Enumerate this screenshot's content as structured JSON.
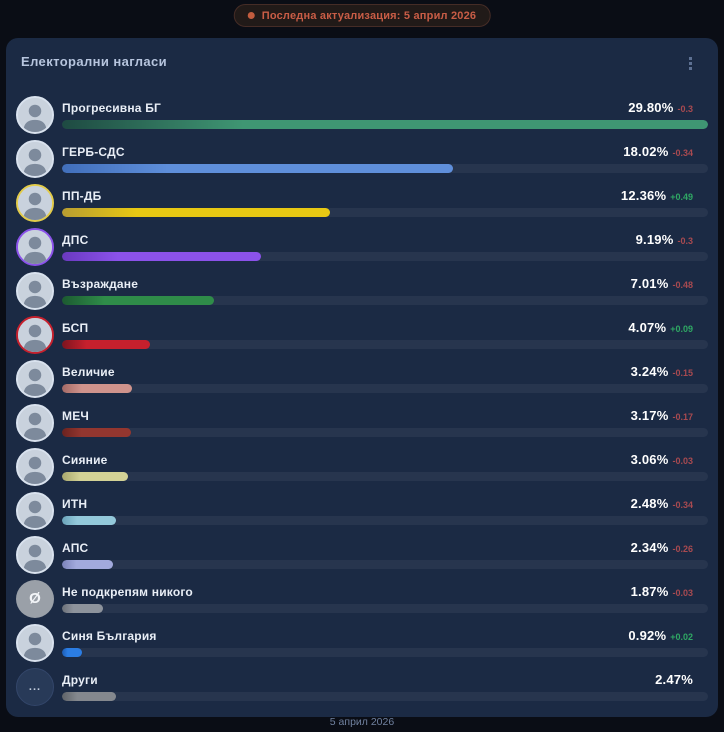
{
  "update_badge": {
    "label": "Последна актуализация: 5 април 2026"
  },
  "panel": {
    "title": "Електорални нагласи",
    "footer_date": "5 април 2026",
    "menu_icon": "kebab-vertical-icon"
  },
  "avatar_symbols": {
    "none": "Ø",
    "dots": "..."
  },
  "chart_data": {
    "type": "bar",
    "orientation": "horizontal",
    "title": "Електорални нагласи",
    "unit": "%",
    "scale_max": 29.8,
    "note": "bar widths normalized to leading party value",
    "legend_position": "none",
    "parties": [
      {
        "name": "Прогресивна БГ",
        "value": 29.8,
        "display": "29.80%",
        "delta": "-0.3",
        "trend": "down",
        "bar_color": "#3f9673",
        "bar_color_dark": "#1e4a42",
        "avatar": "photo",
        "ring": "#d9e2ee"
      },
      {
        "name": "ГЕРБ-СДС",
        "value": 18.02,
        "display": "18.02%",
        "delta": "-0.34",
        "trend": "down",
        "bar_color": "#5f8fdb",
        "bar_color_dark": "#416fbb",
        "avatar": "photo",
        "ring": "#d9e2ee"
      },
      {
        "name": "ПП-ДБ",
        "value": 12.36,
        "display": "12.36%",
        "delta": "+0.49",
        "trend": "up",
        "bar_color": "#e7c813",
        "bar_color_dark": "#b89d31",
        "avatar": "photo",
        "ring": "#e3cc4a"
      },
      {
        "name": "ДПС",
        "value": 9.19,
        "display": "9.19%",
        "delta": "-0.3",
        "trend": "down",
        "bar_color": "#8b52ea",
        "bar_color_dark": "#6a39c0",
        "avatar": "photo",
        "ring": "#8b52ea"
      },
      {
        "name": "Възраждане",
        "value": 7.01,
        "display": "7.01%",
        "delta": "-0.48",
        "trend": "down",
        "bar_color": "#2f8c49",
        "bar_color_dark": "#1c5a31",
        "avatar": "photo",
        "ring": "#d9e2ee"
      },
      {
        "name": "БСП",
        "value": 4.07,
        "display": "4.07%",
        "delta": "+0.09",
        "trend": "up",
        "bar_color": "#c6202d",
        "bar_color_dark": "#7e141f",
        "avatar": "photo",
        "ring": "#c6202d"
      },
      {
        "name": "Величие",
        "value": 3.24,
        "display": "3.24%",
        "delta": "-0.15",
        "trend": "down",
        "bar_color": "#cf938c",
        "bar_color_dark": "#a56a66",
        "avatar": "photo",
        "ring": "#d9e2ee"
      },
      {
        "name": "МЕЧ",
        "value": 3.17,
        "display": "3.17%",
        "delta": "-0.17",
        "trend": "down",
        "bar_color": "#93362f",
        "bar_color_dark": "#6b221f",
        "avatar": "photo",
        "ring": "#d9e2ee"
      },
      {
        "name": "Сияние",
        "value": 3.06,
        "display": "3.06%",
        "delta": "-0.03",
        "trend": "down",
        "bar_color": "#d3d296",
        "bar_color_dark": "#a8a86e",
        "avatar": "photo",
        "ring": "#d9e2ee"
      },
      {
        "name": "ИТН",
        "value": 2.48,
        "display": "2.48%",
        "delta": "-0.34",
        "trend": "down",
        "bar_color": "#93c8da",
        "bar_color_dark": "#6ba4ba",
        "avatar": "photo",
        "ring": "#d9e2ee"
      },
      {
        "name": "АПС",
        "value": 2.34,
        "display": "2.34%",
        "delta": "-0.26",
        "trend": "down",
        "bar_color": "#a2aadd",
        "bar_color_dark": "#7b83bb",
        "avatar": "photo",
        "ring": "#d9e2ee"
      },
      {
        "name": "Не подкрепям никого",
        "value": 1.87,
        "display": "1.87%",
        "delta": "-0.03",
        "trend": "down",
        "bar_color": "#8d939c",
        "bar_color_dark": "#6c7179",
        "avatar": "none",
        "ring": "#9aa0a8"
      },
      {
        "name": "Синя България",
        "value": 0.92,
        "display": "0.92%",
        "delta": "+0.02",
        "trend": "up",
        "bar_color": "#2b7de4",
        "bar_color_dark": "#1c5cb4",
        "avatar": "photo",
        "ring": "#d9e2ee"
      },
      {
        "name": "Други",
        "value": 2.47,
        "display": "2.47%",
        "delta": "",
        "trend": "none",
        "bar_color": "#84888e",
        "bar_color_dark": "#5f6368",
        "avatar": "dots",
        "ring": "#33466a"
      }
    ]
  }
}
